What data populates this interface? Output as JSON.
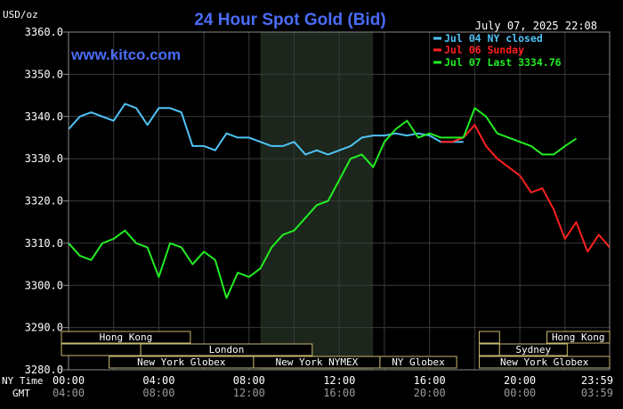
{
  "chart_data": {
    "type": "line",
    "title": "24 Hour Spot Gold (Bid)",
    "ylabel": "USD/oz",
    "watermark": "www.kitco.com",
    "timestamp": "July 07, 2025 22:08",
    "ylim": [
      3280,
      3360
    ],
    "y_ticks": [
      "3360.0",
      "3350.0",
      "3340.0",
      "3330.0",
      "3320.0",
      "3310.0",
      "3300.0",
      "3290.0",
      "3280.0"
    ],
    "x_row_label_ny": "NY Time",
    "x_row_label_gmt": "GMT",
    "x_ticks_ny": [
      "00:00",
      "04:00",
      "08:00",
      "12:00",
      "16:00",
      "20:00",
      "23:59"
    ],
    "x_ticks_gmt": [
      "04:00",
      "08:00",
      "12:00",
      "16:00",
      "20:00",
      "00:00",
      "03:59"
    ],
    "legend": [
      {
        "text": "Jul 04 NY closed",
        "color": "#4fc3f7"
      },
      {
        "text": "Jul 06 Sunday",
        "color": "#ff2020"
      },
      {
        "text": "Jul 07 Last 3334.76",
        "color": "#22ee22"
      }
    ],
    "grid": true,
    "shaded_range_hours": [
      8.5,
      13.5
    ],
    "series": [
      {
        "color": "#4fc3f7",
        "x": [
          0,
          0.5,
          1,
          1.5,
          2,
          2.5,
          3,
          3.5,
          4,
          4.5,
          5,
          5.5,
          6,
          6.5,
          7,
          7.5,
          8,
          8.5,
          9,
          9.5,
          10,
          10.5,
          11,
          11.5,
          12,
          12.5,
          13,
          13.5,
          14,
          14.5,
          15,
          15.5,
          16,
          16.5,
          17,
          17.5
        ],
        "values": [
          3337,
          3340,
          3341,
          3340,
          3339,
          3343,
          3342,
          3338,
          3342,
          3342,
          3341,
          3333,
          3333,
          3332,
          3336,
          3335,
          3335,
          3334,
          3333,
          3333,
          3334,
          3331,
          3332,
          3331,
          3332,
          3333,
          3335,
          3335.5,
          3335.5,
          3336,
          3335.5,
          3336,
          3335.5,
          3334,
          3334,
          3334
        ]
      },
      {
        "color": "#ff2020",
        "x": [
          16.5,
          17,
          17.5,
          18,
          18.5,
          19,
          19.5,
          20,
          20.5,
          21,
          21.5,
          22,
          22.5,
          23,
          23.5,
          23.98
        ],
        "values": [
          3334,
          3334,
          3335,
          3338,
          3333,
          3330,
          3328,
          3326,
          3322,
          3323,
          3318,
          3311,
          3315,
          3308,
          3312,
          3309
        ]
      },
      {
        "color": "#22ee22",
        "x": [
          0,
          0.5,
          1,
          1.5,
          2,
          2.5,
          3,
          3.5,
          4,
          4.5,
          5,
          5.5,
          6,
          6.5,
          7,
          7.5,
          8,
          8.5,
          9,
          9.5,
          10,
          10.5,
          11,
          11.5,
          12,
          12.5,
          13,
          13.5,
          14,
          14.5,
          15,
          15.5,
          16,
          16.5,
          17,
          17.5,
          18,
          18.5,
          19,
          19.5,
          20,
          20.5,
          21,
          21.5,
          22,
          22.5
        ],
        "values": [
          3310,
          3307,
          3306,
          3310,
          3311,
          3313,
          3310,
          3309,
          3302,
          3310,
          3309,
          3305,
          3308,
          3306,
          3297,
          3303,
          3302,
          3304,
          3309,
          3312,
          3313,
          3316,
          3319,
          3320,
          3325,
          3330,
          3331,
          3328,
          3334,
          3337,
          3339,
          3335,
          3336,
          3335,
          3335,
          3335,
          3342,
          3340,
          3336,
          3335,
          3334,
          3333,
          3331,
          3331,
          3333,
          3334.76
        ]
      }
    ],
    "sessions": [
      {
        "label": "Hong Kong",
        "start": -1,
        "end": 5.4,
        "row": 0
      },
      {
        "label": "",
        "start": -1,
        "end": 3.2,
        "row": 1
      },
      {
        "label": "London",
        "start": 3.2,
        "end": 10.8,
        "row": 1
      },
      {
        "label": "New York Globex",
        "start": 1.8,
        "end": 8.2,
        "row": 2
      },
      {
        "label": "New York NYMEX",
        "start": 8.2,
        "end": 13.8,
        "row": 2
      },
      {
        "label": "NY Globex",
        "start": 13.8,
        "end": 17.2,
        "row": 2
      },
      {
        "label": "",
        "start": 18.2,
        "end": 19.1,
        "row": 0
      },
      {
        "label": "",
        "start": 18.2,
        "end": 19.1,
        "row": 1
      },
      {
        "label": "Hong Kong",
        "start": 21.2,
        "end": 24.2,
        "row": 0
      },
      {
        "label": "Sydney",
        "start": 19.1,
        "end": 22.1,
        "row": 1
      },
      {
        "label": "New York Globex",
        "start": 18.2,
        "end": 24.2,
        "row": 2
      }
    ]
  }
}
